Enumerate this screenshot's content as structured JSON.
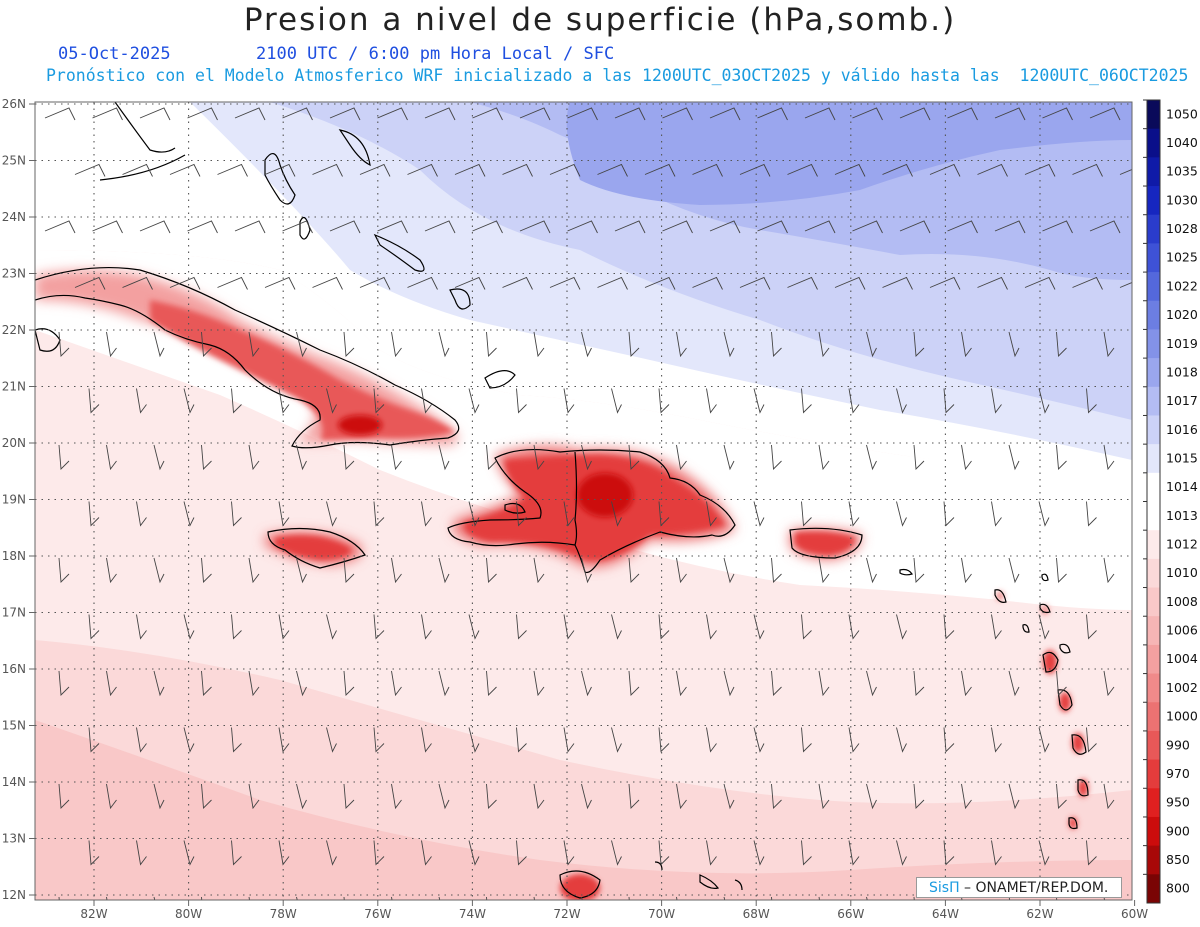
{
  "header": {
    "title": "Presion a nivel de superficie (hPa,somb.)",
    "date": "05-Oct-2025",
    "valid_time": "2100 UTC / 6:00 pm Hora Local / SFC",
    "model_note": "Pronóstico con el Modelo Atmosferico WRF inicializado a las 1200UTC_03OCT2025 y válido hasta las  1200UTC_06OCT2025"
  },
  "axes": {
    "lat_labels": [
      "26N",
      "25N",
      "24N",
      "23N",
      "22N",
      "21N",
      "20N",
      "19N",
      "18N",
      "17N",
      "16N",
      "15N",
      "14N",
      "13N",
      "12N"
    ],
    "lon_labels": [
      "82W",
      "80W",
      "78W",
      "76W",
      "74W",
      "72W",
      "70W",
      "68W",
      "66W",
      "64W",
      "62W",
      "60W"
    ]
  },
  "colorbar": {
    "levels": [
      {
        "label": "1050",
        "color": "#0a0a5a"
      },
      {
        "label": "1040",
        "color": "#0a0f8a"
      },
      {
        "label": "1035",
        "color": "#0f1aa8"
      },
      {
        "label": "1030",
        "color": "#1626c0"
      },
      {
        "label": "1028",
        "color": "#2a3ccc"
      },
      {
        "label": "1025",
        "color": "#3e52d6"
      },
      {
        "label": "1022",
        "color": "#5468dc"
      },
      {
        "label": "1020",
        "color": "#6c7ee2"
      },
      {
        "label": "1019",
        "color": "#8392e8"
      },
      {
        "label": "1018",
        "color": "#9aa6ee"
      },
      {
        "label": "1017",
        "color": "#b3bcf3"
      },
      {
        "label": "1016",
        "color": "#ccd2f7"
      },
      {
        "label": "1015",
        "color": "#e3e7fb"
      },
      {
        "label": "1014",
        "color": "#ffffff"
      },
      {
        "label": "1013",
        "color": "#ffffff"
      },
      {
        "label": "1012",
        "color": "#fdeaea"
      },
      {
        "label": "1010",
        "color": "#fbd9d9"
      },
      {
        "label": "1008",
        "color": "#f9c8c8"
      },
      {
        "label": "1006",
        "color": "#f6b5b5"
      },
      {
        "label": "1004",
        "color": "#f3a0a0"
      },
      {
        "label": "1002",
        "color": "#f08a8a"
      },
      {
        "label": "1000",
        "color": "#ec7272"
      },
      {
        "label": "990",
        "color": "#e85858"
      },
      {
        "label": "970",
        "color": "#e43c3c"
      },
      {
        "label": "950",
        "color": "#e02020"
      },
      {
        "label": "900",
        "color": "#cc0c0c"
      },
      {
        "label": "850",
        "color": "#a80808"
      },
      {
        "label": "800",
        "color": "#7a0404"
      }
    ]
  },
  "credit": {
    "brand": "SisΠ",
    "org": " – ONAMET/REP.DOM."
  }
}
